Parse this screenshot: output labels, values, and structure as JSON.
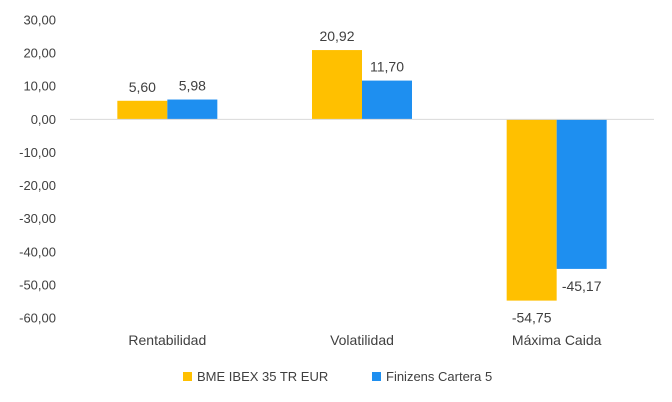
{
  "chart_data": {
    "type": "bar",
    "categories": [
      "Rentabilidad",
      "Volatilidad",
      "Máxima Caida"
    ],
    "series": [
      {
        "name": "BME IBEX 35 TR EUR",
        "values": [
          5.6,
          20.92,
          -54.75
        ],
        "labels": [
          "5,60",
          "20,92",
          "-54,75"
        ],
        "color": "#FFC000"
      },
      {
        "name": "Finizens Cartera 5",
        "values": [
          5.98,
          11.7,
          -45.17
        ],
        "labels": [
          "5,98",
          "11,70",
          "-45,17"
        ],
        "color": "#1E8FF0"
      }
    ],
    "ylim": [
      -60,
      30
    ],
    "yticks": [
      30,
      20,
      10,
      0,
      -10,
      -20,
      -30,
      -40,
      -50,
      -60
    ],
    "ytick_labels": [
      "30,00",
      "20,00",
      "10,00",
      "0,00",
      "-10,00",
      "-20,00",
      "-30,00",
      "-40,00",
      "-50,00",
      "-60,00"
    ],
    "title": "",
    "xlabel": "",
    "ylabel": "",
    "grid": false,
    "legend_position": "bottom"
  }
}
